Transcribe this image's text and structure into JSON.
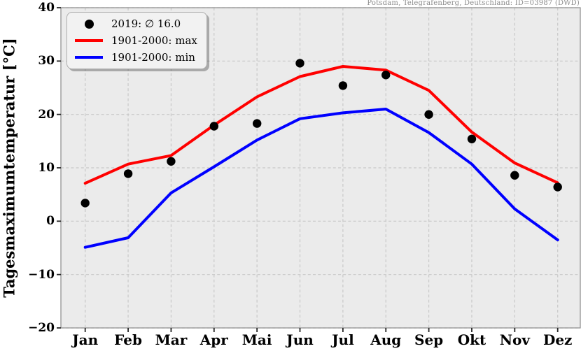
{
  "header": {
    "station_title": "Potsdam, Telegrafenberg, Deutschland: ID=03987 (DWD)"
  },
  "chart_data": {
    "type": "line",
    "title": "Potsdam, Telegrafenberg, Deutschland: ID=03987 (DWD)",
    "xlabel": "",
    "ylabel": "Tagesmaximumtemperatur [°C]",
    "ylim": [
      -20,
      40
    ],
    "ytick_values": [
      40,
      30,
      20,
      10,
      0,
      -10,
      -20
    ],
    "ytick_labels": [
      "40",
      "30",
      "20",
      "10",
      "0",
      "−10",
      "−20"
    ],
    "categories": [
      "Jan",
      "Feb",
      "Mar",
      "Apr",
      "Mai",
      "Jun",
      "Jul",
      "Aug",
      "Sep",
      "Okt",
      "Nov",
      "Dez"
    ],
    "grid": true,
    "grid_style": "dashed",
    "legend_position": "upper left",
    "plot_bg_color": "#ebebeb",
    "grid_color": "#c8c8c8",
    "spine_color": "#8a8a8a",
    "tick_color": "#262626",
    "series": [
      {
        "name": "2019: ∅ 16.0",
        "type": "scatter",
        "color": "#000000",
        "values": [
          3.4,
          8.9,
          11.2,
          17.8,
          18.3,
          29.6,
          25.4,
          27.4,
          20.0,
          15.4,
          8.6,
          6.4
        ]
      },
      {
        "name": "1901-2000: max",
        "type": "line",
        "color": "#ff0000",
        "values": [
          7.1,
          10.7,
          12.3,
          18.0,
          23.3,
          27.1,
          29.0,
          28.3,
          24.5,
          16.7,
          10.9,
          7.2
        ]
      },
      {
        "name": "1901-2000: min",
        "type": "line",
        "color": "#0000ff",
        "values": [
          -4.9,
          -3.1,
          5.3,
          10.2,
          15.2,
          19.2,
          20.3,
          21.0,
          16.6,
          10.7,
          2.3,
          -3.5
        ]
      }
    ]
  }
}
